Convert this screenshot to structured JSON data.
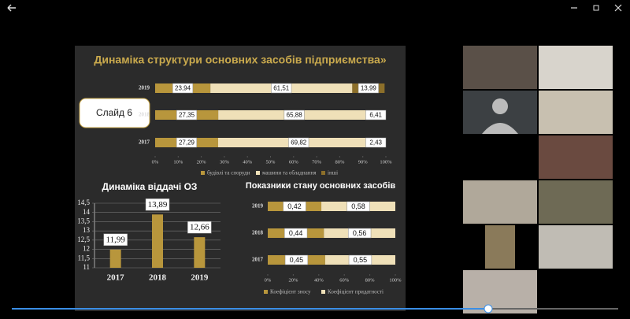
{
  "slide_label": "Слайд 6",
  "chart_data": [
    {
      "type": "stackedbar",
      "title": "Динаміка структури основних засобів підприємства»",
      "categories": [
        "2019",
        "2018",
        "2017"
      ],
      "series": [
        {
          "name": "будівлі та споруди",
          "color": "#b8963c",
          "values": [
            23.94,
            27.35,
            27.29
          ],
          "value_labels": [
            "23,94",
            "27,35",
            "27,29"
          ]
        },
        {
          "name": "машини та обладнання",
          "color": "#efe0b8",
          "values": [
            61.51,
            65.88,
            69.82
          ],
          "value_labels": [
            "61,51",
            "65,88",
            "69,82"
          ]
        },
        {
          "name": "інші",
          "color": "#8c6f2a",
          "values": [
            13.99,
            6.41,
            2.43
          ],
          "value_labels": [
            "13,99",
            "6,41",
            "2,43"
          ]
        }
      ],
      "xlim": [
        0,
        100
      ],
      "xticks": [
        {
          "value": 0,
          "label": "0%"
        },
        {
          "value": 10,
          "label": "10%"
        },
        {
          "value": 20,
          "label": "20%"
        },
        {
          "value": 30,
          "label": "30%"
        },
        {
          "value": 40,
          "label": "40%"
        },
        {
          "value": 50,
          "label": "50%"
        },
        {
          "value": 60,
          "label": "60%"
        },
        {
          "value": 70,
          "label": "70%"
        },
        {
          "value": 80,
          "label": "80%"
        },
        {
          "value": 90,
          "label": "90%"
        },
        {
          "value": 100,
          "label": "100%"
        }
      ]
    },
    {
      "type": "bar",
      "title": "Динаміка віддачі ОЗ",
      "categories": [
        "2017",
        "2018",
        "2019"
      ],
      "values": [
        11.99,
        13.89,
        12.66
      ],
      "value_labels": [
        "11,99",
        "13,89",
        "12,66"
      ],
      "color": "#b8963c",
      "ylim": [
        11,
        14.5
      ],
      "yticks": [
        11,
        {
          "value": 11.5,
          "label": "11,5"
        },
        12,
        {
          "value": 12.5,
          "label": "12,5"
        },
        13,
        {
          "value": 13.5,
          "label": "13,5"
        },
        14,
        {
          "value": 14.5,
          "label": "14,5"
        }
      ]
    },
    {
      "type": "stackedbar",
      "title": "Показники стану основних засобів",
      "categories": [
        "2019",
        "2018",
        "2017"
      ],
      "series": [
        {
          "name": "Коефіцієнт зносу",
          "color": "#b8963c",
          "values": [
            0.42,
            0.44,
            0.45
          ],
          "value_labels": [
            "0,42",
            "0,44",
            "0,45"
          ]
        },
        {
          "name": "Коефіцієнт придатності",
          "color": "#efe0b8",
          "values": [
            0.58,
            0.56,
            0.55
          ],
          "value_labels": [
            "0,58",
            "0,56",
            "0,55"
          ]
        }
      ],
      "xlim": [
        0,
        1
      ],
      "xticks": [
        {
          "value": 0,
          "label": "0%"
        },
        {
          "value": 0.2,
          "label": "20%"
        },
        {
          "value": 0.4,
          "label": "40%"
        },
        {
          "value": 0.6,
          "label": "60%"
        },
        {
          "value": 0.8,
          "label": "80%"
        },
        {
          "value": 1,
          "label": "100%"
        }
      ]
    }
  ]
}
